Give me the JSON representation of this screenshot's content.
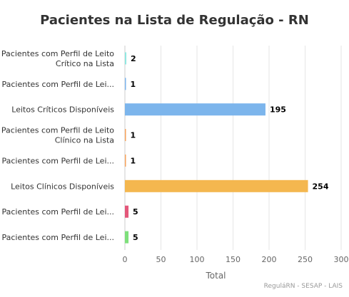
{
  "chart_data": {
    "type": "bar",
    "orientation": "horizontal",
    "title": "Pacientes na Lista de Regulação - RN",
    "xlabel": "Total",
    "ylabel": "",
    "xlim": [
      0,
      300
    ],
    "x_ticks": [
      0,
      50,
      100,
      150,
      200,
      250,
      300
    ],
    "grid": true,
    "legend": "none",
    "categories": [
      [
        "Pacientes com Perfil de Leito",
        "Crítico na Lista"
      ],
      [
        "Pacientes com Perfil de Lei..."
      ],
      [
        "Leitos Críticos Disponíveis"
      ],
      [
        "Pacientes com Perfil de Leito",
        "Clínico na Lista"
      ],
      [
        "Pacientes com Perfil de Lei..."
      ],
      [
        "Leitos Clínicos Disponíveis"
      ],
      [
        "Pacientes com Perfil de Lei..."
      ],
      [
        "Pacientes com Perfil de Lei..."
      ]
    ],
    "values": [
      2,
      1,
      195,
      1,
      1,
      254,
      5,
      5
    ],
    "colors": [
      "#91e8e1",
      "#7cb5ec",
      "#7cb5ec",
      "#f7a35c",
      "#f7a35c",
      "#f4b74f",
      "#e4577a",
      "#7ee07b"
    ],
    "credits": "ReguláRN - SESAP - LAIS"
  }
}
